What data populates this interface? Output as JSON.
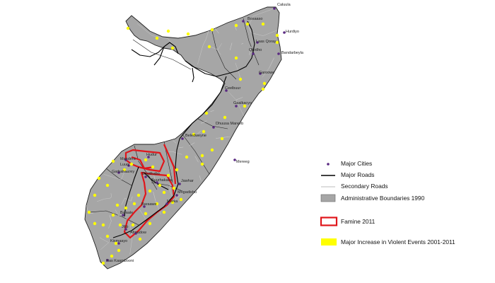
{
  "legend": {
    "major_cities": "Major Cities",
    "major_roads": "Major Roads",
    "secondary_roads": "Secondary Roads",
    "admin_boundaries": "Administrative Boundaries 1990",
    "famine": "Famine 2011",
    "violence": "Major Increase in Violent Events 2001-2011"
  },
  "colors": {
    "land": "#a6a6a6",
    "boundary": "#1f1f1f",
    "secondary_road": "#c9c9c9",
    "major_road": "#000000",
    "famine": "#e0161b",
    "violence": "#ffff00",
    "city": "#5a2a82"
  },
  "cities": [
    "Caluula",
    "Bosaaso",
    "Qardho",
    "Bandarbeyla",
    "Hurdiyo",
    "Garoowe",
    "Gaalkacyo",
    "Dhuusa Mareeb",
    "Beledweyne",
    "Mandera",
    "Hudur",
    "Luuq",
    "Garbahaarey",
    "Baydhabo",
    "Buurhakaba",
    "Jawhar",
    "Mogadishu",
    "Marka",
    "Bu'aale",
    "Jilib",
    "Kismaayo",
    "Afmadow",
    "Ras Kaambooni",
    "Mereeg",
    "Baraawe",
    "Laas Qoray",
    "Ceelbuur"
  ]
}
